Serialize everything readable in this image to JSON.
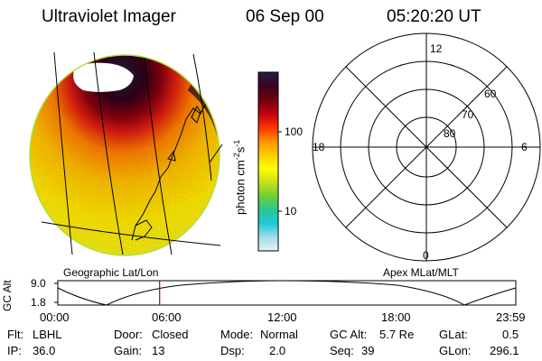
{
  "header": {
    "instrument": "Ultraviolet Imager",
    "date": "06 Sep 00",
    "time": "05:20:20 UT"
  },
  "colorbar": {
    "unit_label": "photon cm",
    "unit_exp1": "-2",
    "unit_mid": "s",
    "unit_exp2": "-1",
    "tick_high": "100",
    "tick_low": "10"
  },
  "polar_plot": {
    "mlt_top": "12",
    "mlt_left": "18",
    "mlt_right": "6",
    "mlt_bottom": "0",
    "lat_60": "60",
    "lat_70": "70",
    "lat_80": "80"
  },
  "frame_labels": {
    "left": "Geographic Lat/Lon",
    "right": "Apex MLat/MLT"
  },
  "altitude_strip": {
    "ylabel": "GC Alt",
    "y_high": "9.0",
    "y_low": "1.8",
    "x_ticks": [
      "00:00",
      "06:00",
      "12:00",
      "18:00",
      "23:59"
    ],
    "marker_time": "05:20"
  },
  "footer": {
    "flt_label": "Flt:",
    "flt_value": "LBHL",
    "ip_label": "IP:",
    "ip_value": "36.0",
    "door_label": "Door:",
    "door_value": "Closed",
    "gain_label": "Gain:",
    "gain_value": "13",
    "mode_label": "Mode:",
    "mode_value": "Normal",
    "dsp_label": "Dsp:",
    "dsp_value": "2.0",
    "gcalt_label": "GC Alt:",
    "gcalt_value": "5.7 Re",
    "seq_label": "Seq:",
    "seq_value": "39",
    "glat_label": "GLat:",
    "glat_value": "0.5",
    "glon_label": "GLon:",
    "glon_value": "296.1"
  },
  "colors": {
    "colorbar_stops": [
      "#e8f0f4",
      "#a0dde6",
      "#20c8d8",
      "#28c890",
      "#70d030",
      "#c8e020",
      "#ffff00",
      "#ffcc00",
      "#ff9000",
      "#ff3000",
      "#c00010",
      "#700010",
      "#400020",
      "#202040"
    ],
    "marker": "#b00000"
  }
}
